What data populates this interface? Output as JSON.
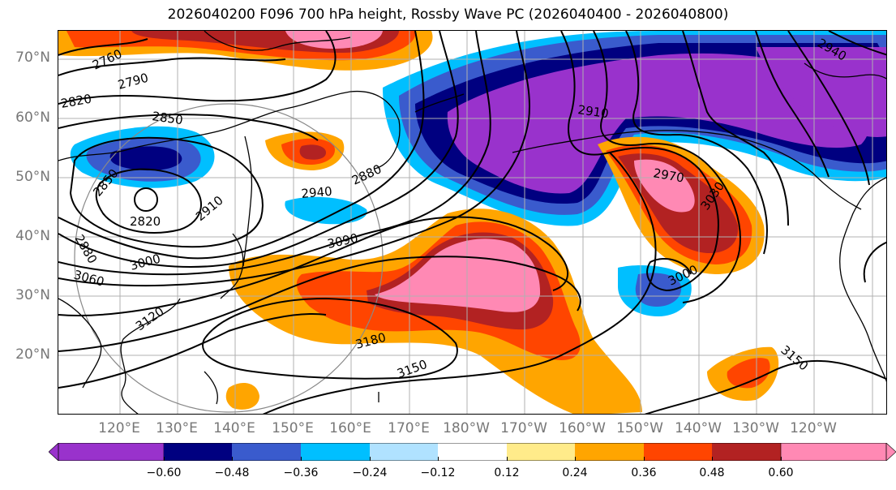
{
  "title": "2026040200 F096 700 hPa height, Rossby Wave PC (2026040400 - 2026040800)",
  "lat_labels": [
    "70°N",
    "60°N",
    "50°N",
    "40°N",
    "30°N",
    "20°N"
  ],
  "lon_labels": [
    "120°E",
    "130°E",
    "140°E",
    "150°E",
    "160°E",
    "170°E",
    "180°W",
    "170°W",
    "160°W",
    "150°W",
    "140°W",
    "130°W",
    "120°W"
  ],
  "colorbar": {
    "ticks": [
      "−0.60",
      "−0.48",
      "−0.36",
      "−0.24",
      "−0.12",
      "0.12",
      "0.24",
      "0.36",
      "0.48",
      "0.60"
    ],
    "colors": [
      "#9932cc",
      "#000080",
      "#3a5bcd",
      "#00bfff",
      "#b0e2ff",
      "#ffffff",
      "#ffeb8a",
      "#ffa500",
      "#ff4500",
      "#b22222",
      "#ff89b4"
    ],
    "extend": "both"
  },
  "contour_labels": {
    "c2760": "2760",
    "c2790": "2790",
    "c2820a": "2820",
    "c2850a": "2850",
    "c2850b": "2850",
    "c2820b": "2820",
    "c2880a": "2880",
    "c2910a": "2910",
    "c2940": "2940",
    "c2880b": "2880",
    "c3090": "3090",
    "c3000a": "3000",
    "c3060": "3060",
    "c3120": "3120",
    "c3180": "3180",
    "c3150a": "3150",
    "c2910b": "2910",
    "c2970": "2970",
    "c3030": "3030",
    "c3000b": "3000",
    "c3150b": "3150",
    "c2940b": "2940"
  },
  "colors": {
    "axis_label": "#777777",
    "grid": "#b0b0b0",
    "contour": "#000000"
  }
}
